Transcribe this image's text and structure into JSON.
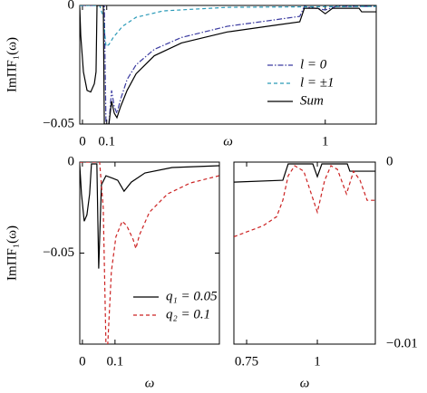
{
  "chart_data": [
    {
      "type": "line",
      "xlabel": "ω",
      "ylabel": "ImΠF₁(ω)",
      "xlim": [
        -0.011,
        1.21
      ],
      "ylim": [
        -0.05,
        0
      ],
      "xticks": [
        0,
        0.1,
        1
      ],
      "yticks": [
        0,
        {
          "value": -0.05,
          "label": "−0.05"
        }
      ],
      "legend": "right",
      "series": [
        {
          "name": "l = 0",
          "color": "#3a3aa0",
          "linestyle": "dashdot",
          "x": [
            -0.011,
            0.09,
            0.097,
            0.109,
            0.12,
            0.131,
            0.142,
            0.157,
            0.184,
            0.221,
            0.296,
            0.408,
            0.596,
            0.783,
            0.895,
            0.914,
            1.0,
            1.045,
            1.21
          ],
          "values": [
            0,
            0,
            -0.05,
            -0.05,
            -0.0358,
            -0.0427,
            -0.0454,
            -0.0396,
            -0.0312,
            -0.025,
            -0.0185,
            -0.0135,
            -0.0088,
            -0.0062,
            -0.0046,
            -0.0004,
            -0.0019,
            -0.0004,
            -0.0004
          ]
        },
        {
          "name": "l = ±1",
          "color": "#2a9ab8",
          "linestyle": "dashed",
          "x": [
            -0.011,
            0.071,
            0.086,
            0.097,
            0.109,
            0.127,
            0.165,
            0.221,
            0.333,
            0.596,
            1.21
          ],
          "values": [
            0,
            0,
            -0.005,
            -0.0173,
            -0.0165,
            -0.0135,
            -0.0088,
            -0.005,
            -0.0023,
            -0.0008,
            -0.0004
          ]
        },
        {
          "name": "Sum",
          "color": "#000000",
          "linestyle": "solid",
          "x": [
            -0.011,
            -0.007,
            0.004,
            0.019,
            0.034,
            0.049,
            0.056,
            0.06,
            0.086,
            0.09,
            0.109,
            0.12,
            0.131,
            0.142,
            0.157,
            0.184,
            0.221,
            0.296,
            0.408,
            0.596,
            0.783,
            0.895,
            0.914,
            0.97,
            1.0,
            1.03,
            1.139,
            1.15,
            1.21
          ],
          "values": [
            -0.001,
            -0.0127,
            -0.028,
            -0.0358,
            -0.0365,
            -0.033,
            -0.028,
            0,
            0,
            -0.05,
            -0.05,
            -0.0404,
            -0.0454,
            -0.0473,
            -0.0427,
            -0.0358,
            -0.0288,
            -0.0212,
            -0.0158,
            -0.0112,
            -0.0085,
            -0.0069,
            -0.0012,
            -0.0012,
            -0.0035,
            -0.0012,
            -0.0012,
            -0.0027,
            -0.0027
          ]
        }
      ]
    },
    {
      "type": "line",
      "xlabel": "ω",
      "ylabel": "ImΠF₁(ω)",
      "xlim": [
        -0.008,
        0.42
      ],
      "ylim": [
        -0.1,
        0
      ],
      "xticks": [
        0,
        0.1
      ],
      "yticks": [
        0,
        {
          "value": -0.05,
          "label": "−0.05"
        }
      ],
      "legend": "lower right",
      "series": [
        {
          "name": "q₁ = 0.05",
          "color": "#000000",
          "linestyle": "solid",
          "x": [
            -0.0083,
            -0.0028,
            0.0056,
            0.0139,
            0.0222,
            0.0278,
            0.0444,
            0.05,
            0.0583,
            0.0722,
            0.0944,
            0.1083,
            0.1278,
            0.15,
            0.1917,
            0.275,
            0.419
          ],
          "values": [
            -0.001,
            -0.0175,
            -0.0325,
            -0.029,
            -0.0175,
            -0.001,
            -0.001,
            -0.0585,
            -0.0125,
            -0.0075,
            -0.009,
            -0.01,
            -0.016,
            -0.011,
            -0.006,
            -0.003,
            -0.002
          ]
        },
        {
          "name": "q₂ = 0.1",
          "color": "#cc2222",
          "linestyle": "dashed",
          "x": [
            -0.0083,
            0.0528,
            0.0639,
            0.0722,
            0.0778,
            0.0889,
            0.1028,
            0.1222,
            0.1361,
            0.1556,
            0.1639,
            0.175,
            0.2056,
            0.2611,
            0.3306,
            0.419
          ],
          "values": [
            0,
            0,
            -0.025,
            -0.1,
            -0.1,
            -0.06,
            -0.041,
            -0.0325,
            -0.035,
            -0.0425,
            -0.0475,
            -0.04,
            -0.0275,
            -0.0175,
            -0.0115,
            -0.0075
          ]
        }
      ]
    },
    {
      "type": "line",
      "xlabel": "ω",
      "xlim": [
        0.705,
        1.205
      ],
      "ylim": [
        -0.01,
        0
      ],
      "xticks": [
        0.75,
        1
      ],
      "yticks": [
        0,
        {
          "value": -0.01,
          "label": "−0.01"
        }
      ],
      "yaxis_side": "right",
      "series": [
        {
          "color": "#000000",
          "linestyle": "solid",
          "x": [
            0.705,
            0.878,
            0.897,
            0.984,
            1.0,
            1.016,
            1.106,
            1.115,
            1.205
          ],
          "values": [
            -0.0011,
            -0.001,
            -0.0001,
            -0.0001,
            -0.0008,
            -0.0001,
            -0.0001,
            -0.0005,
            -0.0005
          ]
        },
        {
          "color": "#cc2222",
          "linestyle": "dashed",
          "x": [
            0.705,
            0.808,
            0.856,
            0.878,
            0.897,
            0.92,
            0.952,
            1.0,
            1.026,
            1.048,
            1.071,
            1.103,
            1.128,
            1.151,
            1.176,
            1.205
          ],
          "values": [
            -0.0041,
            -0.0035,
            -0.003,
            -0.0021,
            -0.00075,
            -0.0002,
            -0.0005,
            -0.00275,
            -0.001,
            -0.0002,
            -0.0004,
            -0.00175,
            -0.0005,
            -0.001,
            -0.0021,
            -0.0021
          ]
        }
      ]
    }
  ]
}
